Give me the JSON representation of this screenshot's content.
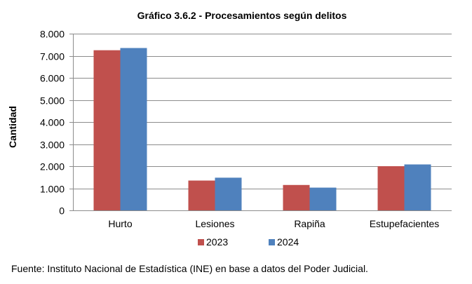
{
  "chart_data": {
    "type": "bar",
    "title": "Gráfico 3.6.2 - Procesamientos según delitos",
    "xlabel": "",
    "ylabel": "Cantidad",
    "categories": [
      "Hurto",
      "Lesiones",
      "Rapiña",
      "Estupefacientes"
    ],
    "series": [
      {
        "name": "2023",
        "color": "#C0504D",
        "values": [
          7250,
          1350,
          1150,
          2000
        ]
      },
      {
        "name": "2024",
        "color": "#4F81BD",
        "values": [
          7350,
          1480,
          1030,
          2080
        ]
      }
    ],
    "ylim": [
      0,
      8000
    ],
    "yticks": [
      0,
      1000,
      2000,
      3000,
      4000,
      5000,
      6000,
      7000,
      8000
    ],
    "ytick_labels": [
      "0",
      "1.000",
      "2.000",
      "3.000",
      "4.000",
      "5.000",
      "6.000",
      "7.000",
      "8.000"
    ],
    "grid": true,
    "legend_position": "bottom"
  },
  "source_note": "Fuente: Instituto Nacional de Estadística (INE) en base a datos del Poder Judicial."
}
